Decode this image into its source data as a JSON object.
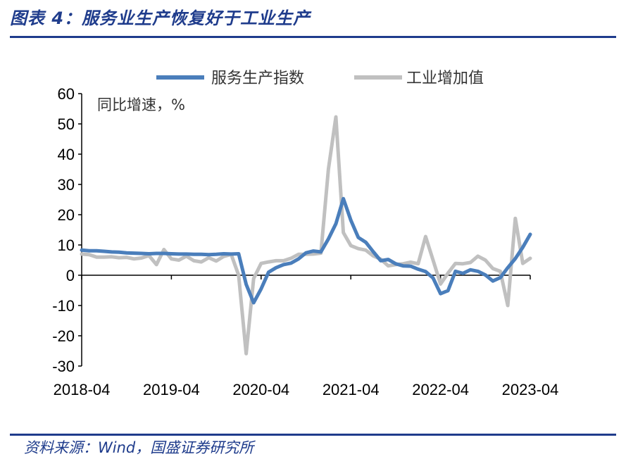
{
  "header": {
    "title": "图表 4：服务业生产恢复好于工业生产"
  },
  "footer": {
    "source": "资料来源：Wind，国盛证券研究所"
  },
  "chart_data": {
    "type": "line",
    "y_unit_label": "同比增速，%",
    "ylim": [
      -30,
      60
    ],
    "yticks": [
      -30,
      -20,
      -10,
      0,
      10,
      20,
      30,
      40,
      50,
      60
    ],
    "xlim": [
      "2018-04",
      "2023-04"
    ],
    "xticks": [
      "2018-04",
      "2019-04",
      "2020-04",
      "2021-04",
      "2022-04",
      "2023-04"
    ],
    "grid": false,
    "legend_position": "top",
    "series": [
      {
        "name": "服务生产指数",
        "color": "#4a7ebb",
        "points": [
          [
            "2018-04",
            8.3
          ],
          [
            "2018-05",
            8.1
          ],
          [
            "2018-06",
            8.1
          ],
          [
            "2018-07",
            7.9
          ],
          [
            "2018-08",
            7.7
          ],
          [
            "2018-09",
            7.6
          ],
          [
            "2018-10",
            7.4
          ],
          [
            "2018-11",
            7.3
          ],
          [
            "2018-12",
            7.2
          ],
          [
            "2019-01",
            7.1
          ],
          [
            "2019-02",
            7.2
          ],
          [
            "2019-03",
            7.2
          ],
          [
            "2019-04",
            7.1
          ],
          [
            "2019-05",
            7.0
          ],
          [
            "2019-06",
            7.0
          ],
          [
            "2019-07",
            6.9
          ],
          [
            "2019-08",
            6.9
          ],
          [
            "2019-09",
            6.8
          ],
          [
            "2019-10",
            6.9
          ],
          [
            "2019-11",
            7.1
          ],
          [
            "2019-12",
            7.0
          ],
          [
            "2020-01",
            7.1
          ],
          [
            "2020-02",
            -3.0
          ],
          [
            "2020-03",
            -9.1
          ],
          [
            "2020-04",
            -4.5
          ],
          [
            "2020-05",
            1.0
          ],
          [
            "2020-06",
            2.5
          ],
          [
            "2020-07",
            3.5
          ],
          [
            "2020-08",
            4.0
          ],
          [
            "2020-09",
            5.4
          ],
          [
            "2020-10",
            7.4
          ],
          [
            "2020-11",
            8.0
          ],
          [
            "2020-12",
            7.7
          ],
          [
            "2021-01",
            12.0
          ],
          [
            "2021-02",
            17.0
          ],
          [
            "2021-03",
            25.3
          ],
          [
            "2021-04",
            18.2
          ],
          [
            "2021-05",
            12.5
          ],
          [
            "2021-06",
            10.9
          ],
          [
            "2021-07",
            7.8
          ],
          [
            "2021-08",
            4.8
          ],
          [
            "2021-09",
            5.2
          ],
          [
            "2021-10",
            3.8
          ],
          [
            "2021-11",
            3.1
          ],
          [
            "2021-12",
            3.0
          ],
          [
            "2022-01",
            2.0
          ],
          [
            "2022-02",
            1.2
          ],
          [
            "2022-03",
            -0.9
          ],
          [
            "2022-04",
            -6.1
          ],
          [
            "2022-05",
            -5.1
          ],
          [
            "2022-06",
            1.3
          ],
          [
            "2022-07",
            0.6
          ],
          [
            "2022-08",
            1.8
          ],
          [
            "2022-09",
            1.3
          ],
          [
            "2022-10",
            0.1
          ],
          [
            "2022-11",
            -1.9
          ],
          [
            "2022-12",
            -0.8
          ],
          [
            "2023-01",
            2.5
          ],
          [
            "2023-02",
            5.5
          ],
          [
            "2023-03",
            9.2
          ],
          [
            "2023-04",
            13.5
          ]
        ]
      },
      {
        "name": "工业增加值",
        "color": "#c0c0c0",
        "points": [
          [
            "2018-04",
            7.0
          ],
          [
            "2018-05",
            6.8
          ],
          [
            "2018-06",
            6.0
          ],
          [
            "2018-07",
            6.0
          ],
          [
            "2018-08",
            6.1
          ],
          [
            "2018-09",
            5.8
          ],
          [
            "2018-10",
            5.9
          ],
          [
            "2018-11",
            5.4
          ],
          [
            "2018-12",
            5.7
          ],
          [
            "2019-01",
            6.5
          ],
          [
            "2019-02",
            3.5
          ],
          [
            "2019-03",
            8.5
          ],
          [
            "2019-04",
            5.4
          ],
          [
            "2019-05",
            5.0
          ],
          [
            "2019-06",
            6.3
          ],
          [
            "2019-07",
            4.8
          ],
          [
            "2019-08",
            4.4
          ],
          [
            "2019-09",
            5.8
          ],
          [
            "2019-10",
            4.7
          ],
          [
            "2019-11",
            6.2
          ],
          [
            "2019-12",
            6.9
          ],
          [
            "2020-01",
            0.0
          ],
          [
            "2020-02",
            -25.9
          ],
          [
            "2020-03",
            -1.1
          ],
          [
            "2020-04",
            3.9
          ],
          [
            "2020-05",
            4.4
          ],
          [
            "2020-06",
            4.8
          ],
          [
            "2020-07",
            4.8
          ],
          [
            "2020-08",
            5.6
          ],
          [
            "2020-09",
            6.9
          ],
          [
            "2020-10",
            6.9
          ],
          [
            "2020-11",
            7.0
          ],
          [
            "2020-12",
            7.3
          ],
          [
            "2021-01",
            35.1
          ],
          [
            "2021-02",
            52.3
          ],
          [
            "2021-03",
            14.1
          ],
          [
            "2021-04",
            9.8
          ],
          [
            "2021-05",
            8.8
          ],
          [
            "2021-06",
            8.3
          ],
          [
            "2021-07",
            6.4
          ],
          [
            "2021-08",
            5.3
          ],
          [
            "2021-09",
            3.1
          ],
          [
            "2021-10",
            3.5
          ],
          [
            "2021-11",
            3.8
          ],
          [
            "2021-12",
            4.3
          ],
          [
            "2022-01",
            3.8
          ],
          [
            "2022-02",
            12.8
          ],
          [
            "2022-03",
            5.0
          ],
          [
            "2022-04",
            -2.9
          ],
          [
            "2022-05",
            0.7
          ],
          [
            "2022-06",
            3.9
          ],
          [
            "2022-07",
            3.8
          ],
          [
            "2022-08",
            4.2
          ],
          [
            "2022-09",
            6.3
          ],
          [
            "2022-10",
            5.0
          ],
          [
            "2022-11",
            2.2
          ],
          [
            "2022-12",
            1.3
          ],
          [
            "2023-01",
            -10.0
          ],
          [
            "2023-02",
            18.8
          ],
          [
            "2023-03",
            3.9
          ],
          [
            "2023-04",
            5.6
          ]
        ]
      }
    ]
  }
}
